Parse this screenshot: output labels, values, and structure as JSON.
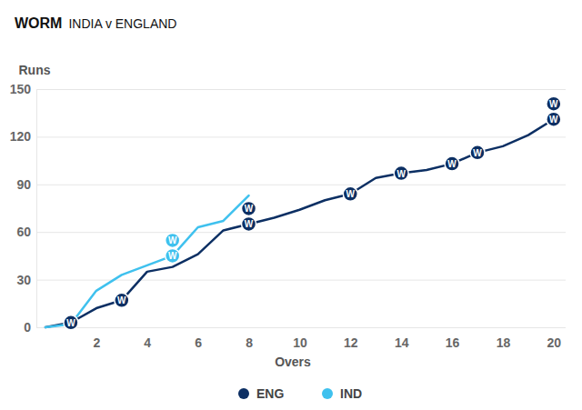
{
  "chart_data": {
    "type": "line",
    "title": "WORM",
    "subtitle": "INDIA v ENGLAND",
    "x_label": "Overs",
    "y_label": "Runs",
    "wicket_label": "W",
    "x": [
      0,
      1,
      2,
      3,
      4,
      5,
      6,
      7,
      8,
      9,
      10,
      11,
      12,
      13,
      14,
      15,
      16,
      17,
      18,
      19,
      20
    ],
    "series": [
      {
        "name": "ENG",
        "color": "#0c2f63",
        "marker": "circle",
        "values": [
          0,
          3,
          12,
          17,
          35,
          38,
          46,
          61,
          65,
          69,
          74,
          80,
          84,
          94,
          97,
          99,
          103,
          110,
          114,
          121,
          131
        ],
        "wickets": [
          1,
          3,
          8,
          8,
          12,
          14,
          16,
          17,
          20,
          20
        ]
      },
      {
        "name": "IND",
        "color": "#3fc1ee",
        "marker": "circle",
        "values": [
          0,
          2,
          23,
          33,
          39,
          45,
          63,
          67,
          83,
          null,
          null,
          null,
          null,
          null,
          null,
          null,
          null,
          null,
          null,
          null,
          null
        ],
        "wickets": [
          5,
          5
        ]
      }
    ],
    "xlim": [
      0,
      20.4
    ],
    "xticks": [
      2,
      4,
      6,
      8,
      10,
      12,
      14,
      16,
      18,
      20
    ],
    "ylim": [
      0,
      150
    ],
    "yticks": [
      0,
      30,
      60,
      90,
      120,
      150
    ],
    "grid": true,
    "legend": "bottom"
  }
}
